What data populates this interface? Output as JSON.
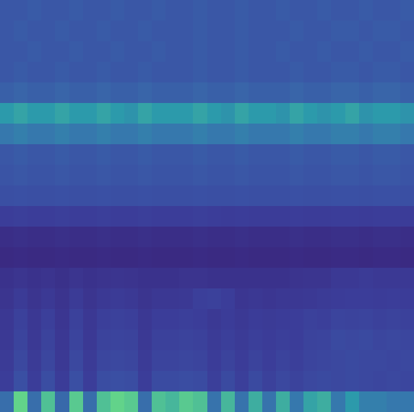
{
  "chart_data": {
    "type": "heatmap",
    "tick_labels": false,
    "grid": false,
    "cells": [
      [
        55,
        68,
        55,
        66,
        54,
        67,
        55,
        66,
        68,
        67,
        55,
        66,
        65,
        67,
        66,
        56,
        65,
        56,
        64,
        56,
        64,
        57,
        63,
        64,
        57,
        62,
        58,
        58,
        57,
        57
      ],
      [
        36,
        46,
        36,
        45,
        35,
        46,
        36,
        45,
        46,
        45,
        36,
        44,
        44,
        45,
        44,
        37,
        43,
        37,
        43,
        38,
        42,
        39,
        42,
        43,
        42,
        43,
        42,
        41,
        42,
        41
      ],
      [
        34,
        42,
        34,
        41,
        33,
        42,
        34,
        41,
        42,
        41,
        34,
        40,
        40,
        41,
        40,
        35,
        39,
        35,
        39,
        36,
        39,
        37,
        40,
        41,
        42,
        43,
        42,
        42,
        41,
        42
      ],
      [
        33,
        40,
        33,
        39,
        32,
        40,
        33,
        39,
        40,
        39,
        33,
        38,
        38,
        39,
        38,
        34,
        37,
        34,
        37,
        35,
        37,
        36,
        39,
        40,
        43,
        42,
        43,
        41,
        42,
        41
      ],
      [
        32,
        38,
        32,
        37,
        31,
        38,
        32,
        37,
        38,
        37,
        32,
        36,
        36,
        37,
        36,
        33,
        35,
        33,
        35,
        34,
        35,
        36,
        38,
        37,
        40,
        39,
        40,
        38,
        39,
        38
      ],
      [
        30,
        34,
        30,
        33,
        29,
        34,
        30,
        33,
        34,
        33,
        30,
        32,
        32,
        33,
        37,
        38,
        36,
        31,
        32,
        31,
        32,
        32,
        33,
        34,
        35,
        36,
        36,
        35,
        36,
        35
      ],
      [
        28,
        30,
        28,
        29,
        27,
        30,
        28,
        29,
        30,
        29,
        28,
        28,
        28,
        29,
        29,
        28,
        28,
        28,
        28,
        28,
        28,
        29,
        30,
        30,
        33,
        33,
        34,
        33,
        33,
        33
      ],
      [
        22,
        23,
        22,
        22,
        23,
        22,
        22,
        23,
        22,
        22,
        23,
        22,
        22,
        22,
        23,
        22,
        22,
        23,
        22,
        22,
        22,
        23,
        22,
        22,
        23,
        23,
        22,
        23,
        23,
        22
      ],
      [
        25,
        26,
        25,
        25,
        26,
        25,
        25,
        26,
        25,
        25,
        26,
        25,
        25,
        25,
        26,
        25,
        25,
        26,
        25,
        25,
        25,
        26,
        25,
        25,
        26,
        26,
        25,
        26,
        26,
        25
      ],
      [
        36,
        37,
        36,
        36,
        37,
        36,
        36,
        37,
        36,
        36,
        37,
        36,
        36,
        36,
        37,
        36,
        35,
        36,
        35,
        35,
        35,
        36,
        35,
        35,
        36,
        36,
        35,
        36,
        36,
        35
      ],
      [
        46,
        47,
        46,
        46,
        47,
        46,
        46,
        47,
        46,
        46,
        47,
        46,
        46,
        46,
        47,
        46,
        46,
        47,
        46,
        46,
        46,
        47,
        46,
        46,
        47,
        47,
        46,
        47,
        47,
        46
      ],
      [
        49,
        50,
        49,
        49,
        50,
        49,
        49,
        50,
        49,
        49,
        50,
        49,
        49,
        49,
        50,
        49,
        49,
        50,
        49,
        49,
        49,
        50,
        49,
        49,
        50,
        50,
        49,
        50,
        50,
        49
      ],
      [
        50,
        51,
        50,
        50,
        51,
        50,
        50,
        51,
        50,
        50,
        51,
        50,
        50,
        50,
        51,
        50,
        50,
        51,
        50,
        50,
        50,
        51,
        50,
        50,
        51,
        51,
        50,
        51,
        51,
        50
      ],
      [
        57,
        58,
        57,
        57,
        58,
        57,
        57,
        58,
        57,
        57,
        58,
        57,
        57,
        57,
        58,
        57,
        57,
        58,
        57,
        57,
        57,
        58,
        57,
        57,
        58,
        58,
        57,
        58,
        58,
        57
      ],
      [
        62,
        63,
        62,
        62,
        63,
        62,
        62,
        63,
        62,
        61,
        63,
        62,
        62,
        62,
        63,
        62,
        61,
        63,
        62,
        62,
        61,
        63,
        62,
        61,
        62,
        63,
        61,
        62,
        62,
        61
      ],
      [
        52,
        53,
        52,
        52,
        53,
        52,
        52,
        53,
        52,
        52,
        53,
        52,
        52,
        52,
        53,
        52,
        52,
        53,
        52,
        52,
        52,
        53,
        52,
        52,
        53,
        53,
        52,
        53,
        53,
        52
      ],
      [
        50,
        51,
        50,
        50,
        51,
        50,
        50,
        51,
        50,
        50,
        51,
        50,
        50,
        50,
        51,
        50,
        50,
        51,
        50,
        50,
        50,
        51,
        50,
        50,
        51,
        51,
        50,
        51,
        51,
        50
      ],
      [
        50,
        50,
        51,
        50,
        50,
        51,
        50,
        50,
        51,
        50,
        50,
        51,
        50,
        50,
        51,
        50,
        50,
        51,
        50,
        50,
        51,
        50,
        50,
        51,
        50,
        50,
        51,
        50,
        50,
        51
      ],
      [
        50,
        51,
        50,
        50,
        51,
        50,
        50,
        51,
        50,
        50,
        51,
        50,
        50,
        50,
        51,
        50,
        50,
        51,
        50,
        50,
        50,
        51,
        50,
        50,
        51,
        51,
        50,
        51,
        51,
        50
      ],
      [
        50,
        50,
        51,
        50,
        50,
        51,
        50,
        50,
        51,
        50,
        50,
        51,
        50,
        50,
        51,
        50,
        50,
        51,
        50,
        50,
        51,
        50,
        50,
        51,
        50,
        50,
        51,
        50,
        50,
        51
      ]
    ]
  }
}
